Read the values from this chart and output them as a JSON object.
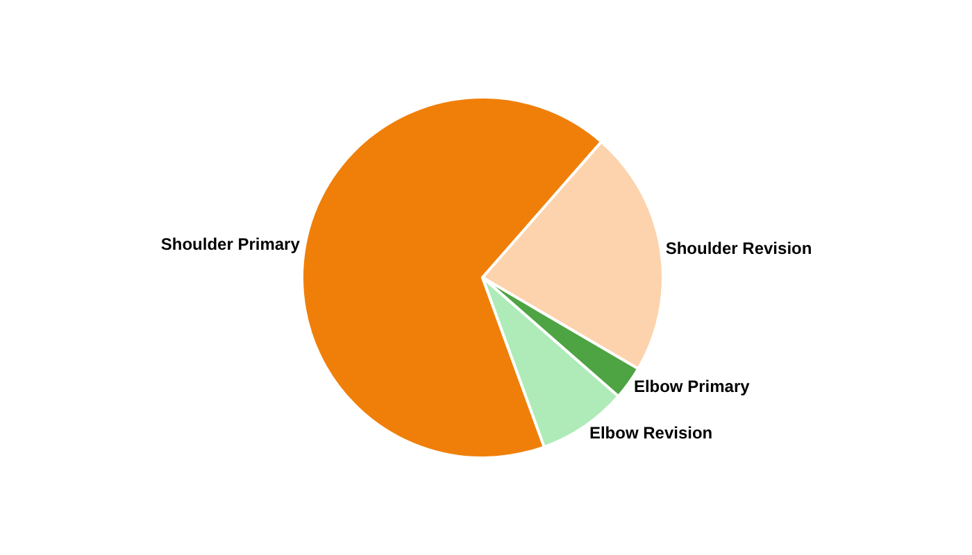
{
  "chart_data": {
    "type": "pie",
    "categories": [
      "Shoulder Primary",
      "Shoulder Revision",
      "Elbow Primary",
      "Elbow Revision"
    ],
    "values": [
      67,
      22,
      3,
      8
    ],
    "colors": [
      "#f07f09",
      "#fcd3ad",
      "#4ea443",
      "#aeebb8"
    ],
    "legend": false
  }
}
